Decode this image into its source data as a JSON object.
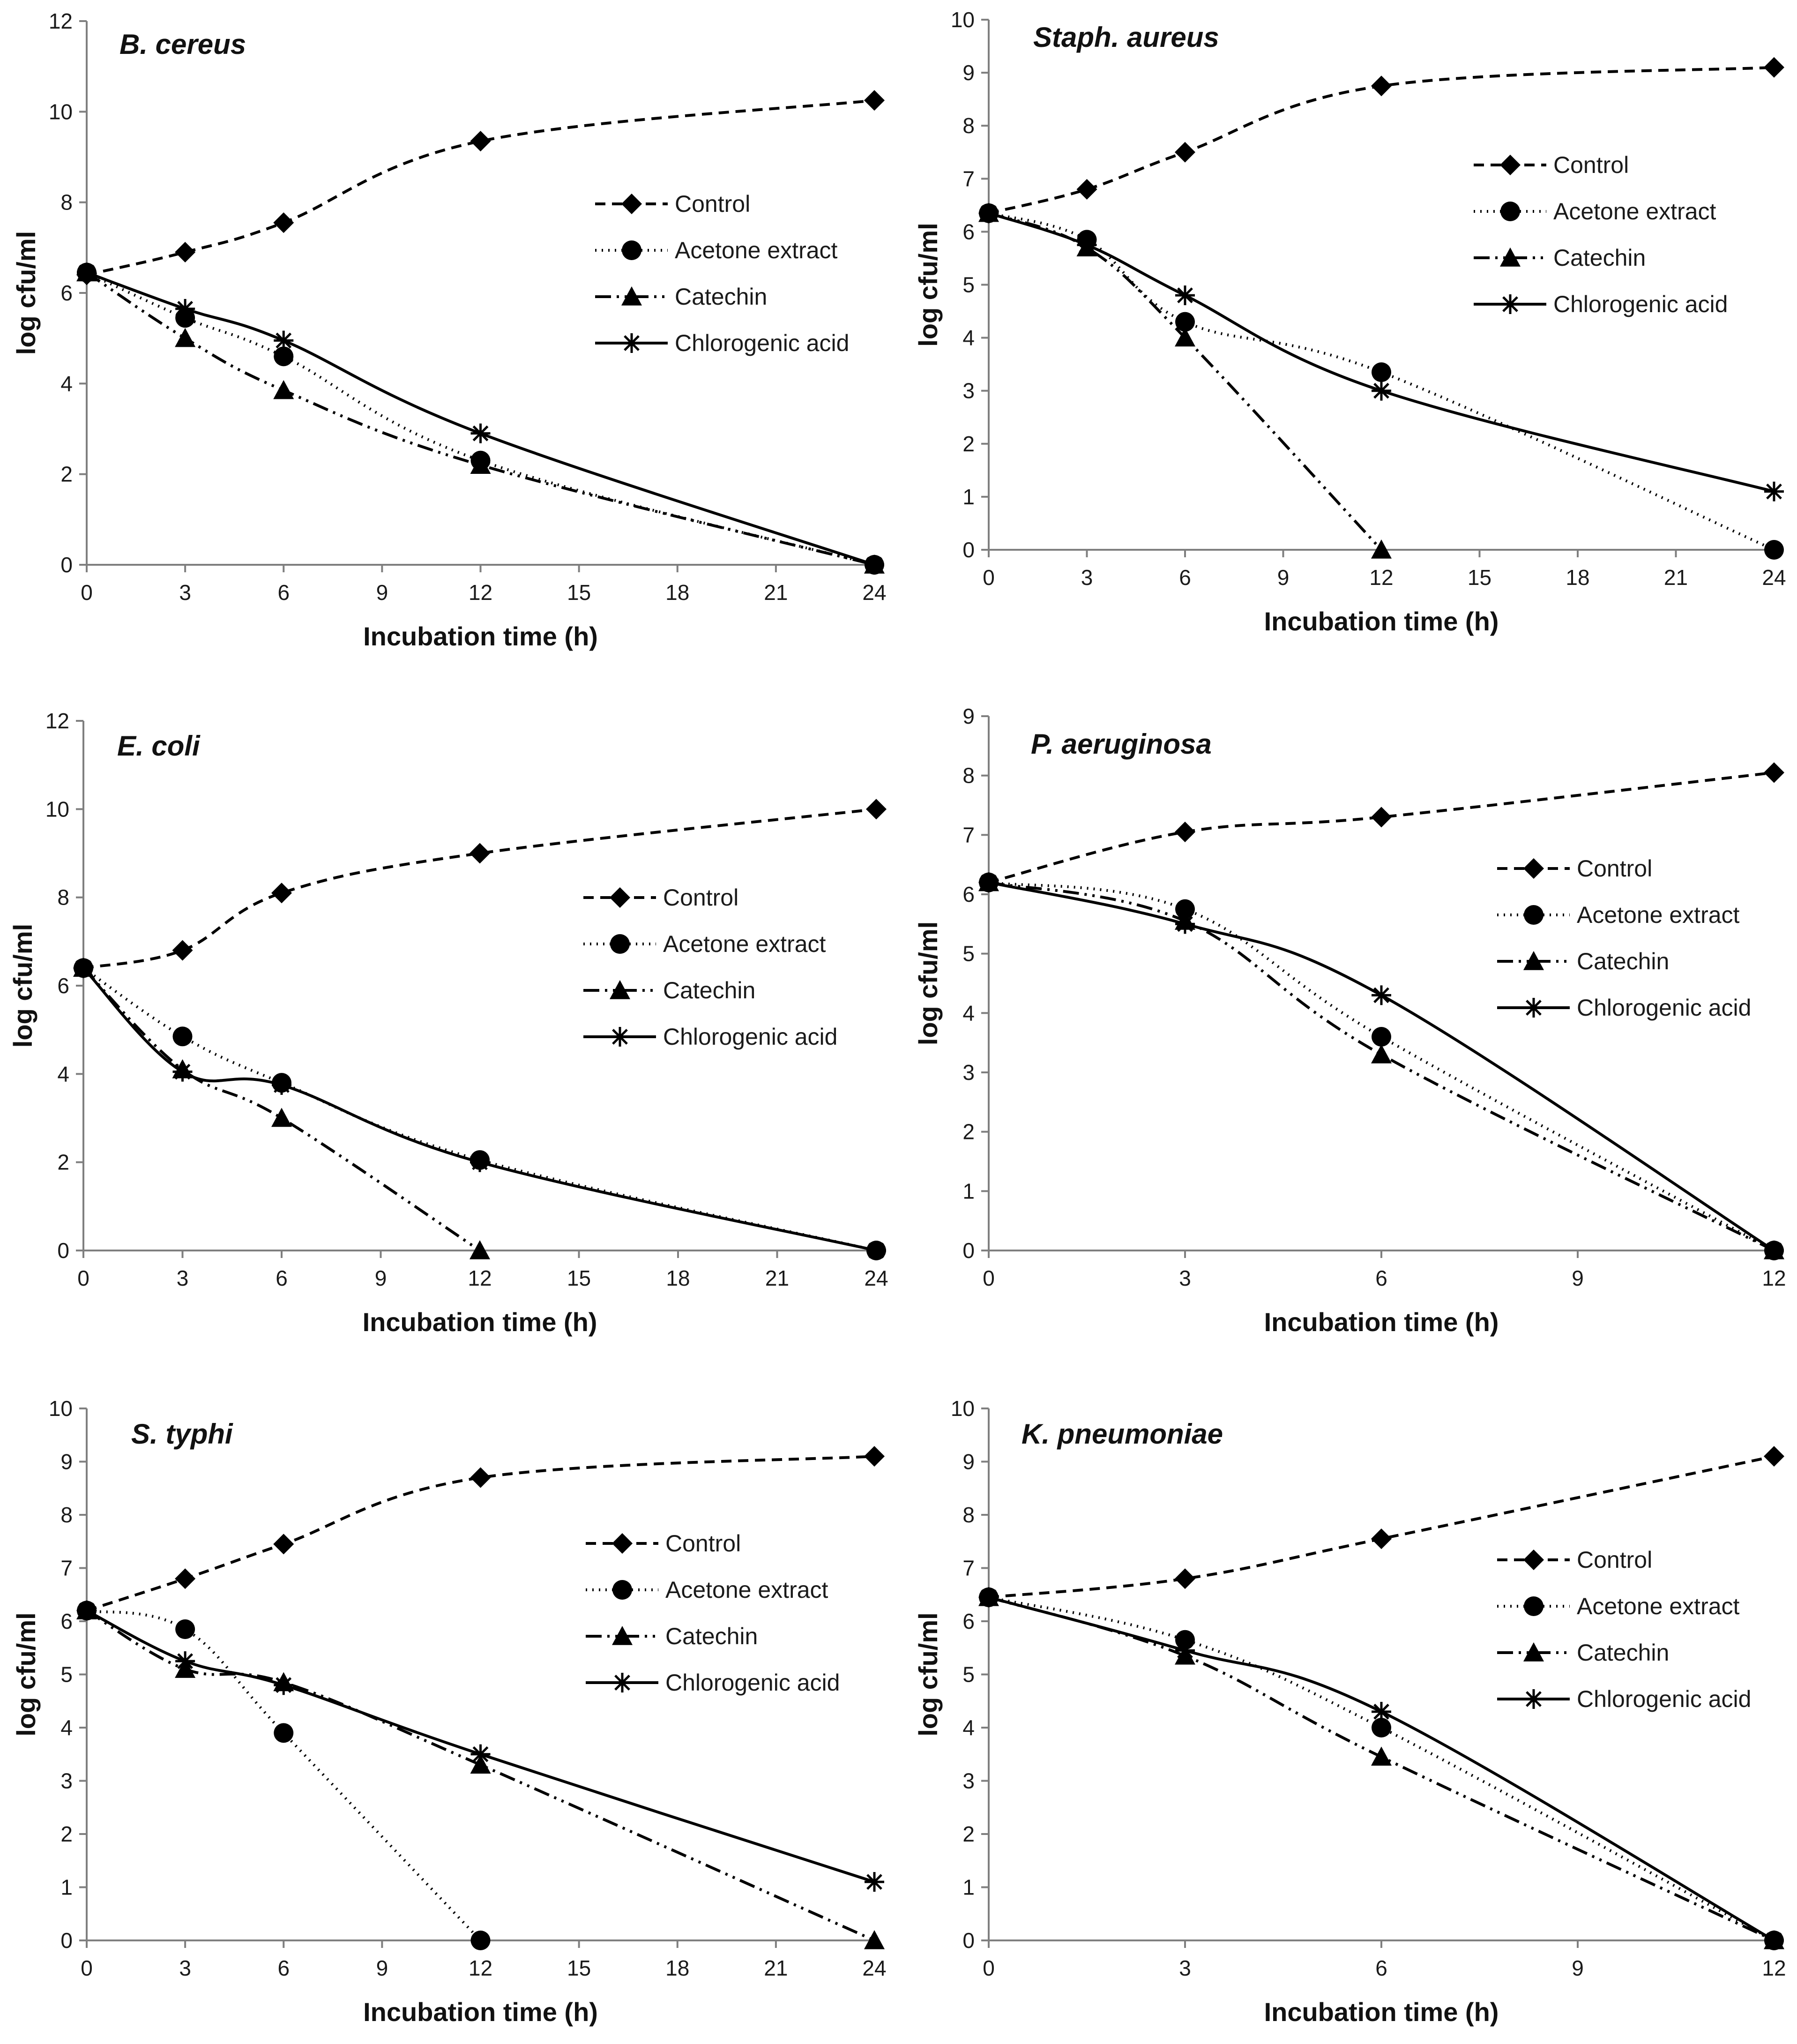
{
  "figure": {
    "series_styles": [
      {
        "name": "Control",
        "marker": "diamond",
        "dash": "22 14"
      },
      {
        "name": "Acetone extract",
        "marker": "circle",
        "dash": "3 11"
      },
      {
        "name": "Catechin",
        "marker": "triangle",
        "dash": "34 12 5 12 5 12"
      },
      {
        "name": "Chlorogenic acid",
        "marker": "asterisk",
        "dash": "none"
      }
    ],
    "line_color": "#000000"
  },
  "chart_data": [
    {
      "type": "line",
      "title": "B. cereus",
      "xlabel": "Incubation time (h)",
      "ylabel": "log cfu/ml",
      "xlim": [
        0,
        24
      ],
      "ylim": [
        0,
        12
      ],
      "xticks": [
        0,
        3,
        6,
        9,
        12,
        15,
        18,
        21,
        24
      ],
      "yticks": [
        0,
        2,
        4,
        6,
        8,
        10,
        12
      ],
      "x": [
        0,
        3,
        6,
        12,
        24
      ],
      "series": [
        {
          "name": "Control",
          "values": [
            6.4,
            6.9,
            7.55,
            9.35,
            10.25
          ]
        },
        {
          "name": "Acetone extract",
          "values": [
            6.45,
            5.45,
            4.6,
            2.3,
            0
          ]
        },
        {
          "name": "Catechin",
          "values": [
            6.45,
            5.0,
            3.85,
            2.2,
            0
          ]
        },
        {
          "name": "Chlorogenic acid",
          "values": [
            6.45,
            5.65,
            4.95,
            2.9,
            0
          ]
        }
      ],
      "legend": "right"
    },
    {
      "type": "line",
      "title": "Staph. aureus",
      "xlabel": "Incubation time (h)",
      "ylabel": "log cfu/ml",
      "xlim": [
        0,
        24
      ],
      "ylim": [
        0,
        10
      ],
      "xticks": [
        0,
        3,
        6,
        9,
        12,
        15,
        18,
        21,
        24
      ],
      "yticks": [
        0,
        1,
        2,
        3,
        4,
        5,
        6,
        7,
        8,
        9,
        10
      ],
      "x": [
        0,
        3,
        6,
        12,
        24
      ],
      "series": [
        {
          "name": "Control",
          "values": [
            6.35,
            6.8,
            7.5,
            8.75,
            9.1
          ]
        },
        {
          "name": "Acetone extract",
          "values": [
            6.35,
            5.85,
            4.3,
            3.35,
            0
          ]
        },
        {
          "name": "Catechin",
          "values": [
            6.35,
            5.7,
            4.0,
            0
          ],
          "x": [
            0,
            3,
            6,
            12
          ]
        },
        {
          "name": "Chlorogenic acid",
          "values": [
            6.35,
            5.75,
            4.8,
            3.0,
            1.1
          ]
        }
      ],
      "legend": "right"
    },
    {
      "type": "line",
      "title": "E. coli",
      "xlabel": "Incubation time (h)",
      "ylabel": "log cfu/ml",
      "xlim": [
        0,
        24
      ],
      "ylim": [
        0,
        12
      ],
      "xticks": [
        0,
        3,
        6,
        9,
        12,
        15,
        18,
        21,
        24
      ],
      "yticks": [
        0,
        2,
        4,
        6,
        8,
        10,
        12
      ],
      "x": [
        0,
        3,
        6,
        12,
        24
      ],
      "series": [
        {
          "name": "Control",
          "values": [
            6.4,
            6.8,
            8.1,
            9.0,
            10.0
          ]
        },
        {
          "name": "Acetone extract",
          "values": [
            6.4,
            4.85,
            3.8,
            2.05,
            0
          ]
        },
        {
          "name": "Catechin",
          "values": [
            6.4,
            4.1,
            3.0,
            0
          ],
          "x": [
            0,
            3,
            6,
            12
          ]
        },
        {
          "name": "Chlorogenic acid",
          "values": [
            6.4,
            4.05,
            3.75,
            2.0,
            0
          ]
        }
      ],
      "legend": "right"
    },
    {
      "type": "line",
      "title": "P. aeruginosa",
      "xlabel": "Incubation time (h)",
      "ylabel": "log cfu/ml",
      "xlim": [
        0,
        12
      ],
      "ylim": [
        0,
        9
      ],
      "xticks": [
        0,
        3,
        6,
        9,
        12
      ],
      "yticks": [
        0,
        1,
        2,
        3,
        4,
        5,
        6,
        7,
        8,
        9
      ],
      "x": [
        0,
        3,
        6,
        12
      ],
      "series": [
        {
          "name": "Control",
          "values": [
            6.2,
            7.05,
            7.3,
            8.05
          ]
        },
        {
          "name": "Acetone extract",
          "values": [
            6.2,
            5.75,
            3.6,
            0
          ]
        },
        {
          "name": "Catechin",
          "values": [
            6.2,
            5.55,
            3.3,
            0
          ]
        },
        {
          "name": "Chlorogenic acid",
          "values": [
            6.2,
            5.5,
            4.3,
            0
          ]
        }
      ],
      "legend": "right"
    },
    {
      "type": "line",
      "title": "S. typhi",
      "xlabel": "Incubation time (h)",
      "ylabel": "log cfu/ml",
      "xlim": [
        0,
        24
      ],
      "ylim": [
        0,
        10
      ],
      "xticks": [
        0,
        3,
        6,
        9,
        12,
        15,
        18,
        21,
        24
      ],
      "yticks": [
        0,
        1,
        2,
        3,
        4,
        5,
        6,
        7,
        8,
        9,
        10
      ],
      "x": [
        0,
        3,
        6,
        12,
        24
      ],
      "series": [
        {
          "name": "Control",
          "values": [
            6.2,
            6.8,
            7.45,
            8.7,
            9.1
          ]
        },
        {
          "name": "Acetone extract",
          "values": [
            6.2,
            5.85,
            3.9,
            0
          ],
          "x": [
            0,
            3,
            6,
            12
          ]
        },
        {
          "name": "Catechin",
          "values": [
            6.2,
            5.1,
            4.85,
            3.3,
            0
          ]
        },
        {
          "name": "Chlorogenic acid",
          "values": [
            6.2,
            5.25,
            4.8,
            3.5,
            1.1
          ]
        }
      ],
      "legend": "right"
    },
    {
      "type": "line",
      "title": "K. pneumoniae",
      "xlabel": "Incubation time (h)",
      "ylabel": "log cfu/ml",
      "xlim": [
        0,
        12
      ],
      "ylim": [
        0,
        10
      ],
      "xticks": [
        0,
        3,
        6,
        9,
        12
      ],
      "yticks": [
        0,
        1,
        2,
        3,
        4,
        5,
        6,
        7,
        8,
        9,
        10
      ],
      "x": [
        0,
        3,
        6,
        12
      ],
      "series": [
        {
          "name": "Control",
          "values": [
            6.45,
            6.8,
            7.55,
            9.1
          ]
        },
        {
          "name": "Acetone extract",
          "values": [
            6.45,
            5.65,
            4.0,
            0
          ]
        },
        {
          "name": "Catechin",
          "values": [
            6.45,
            5.35,
            3.45,
            0
          ]
        },
        {
          "name": "Chlorogenic acid",
          "values": [
            6.45,
            5.45,
            4.3,
            0
          ]
        }
      ],
      "legend": "right"
    }
  ]
}
